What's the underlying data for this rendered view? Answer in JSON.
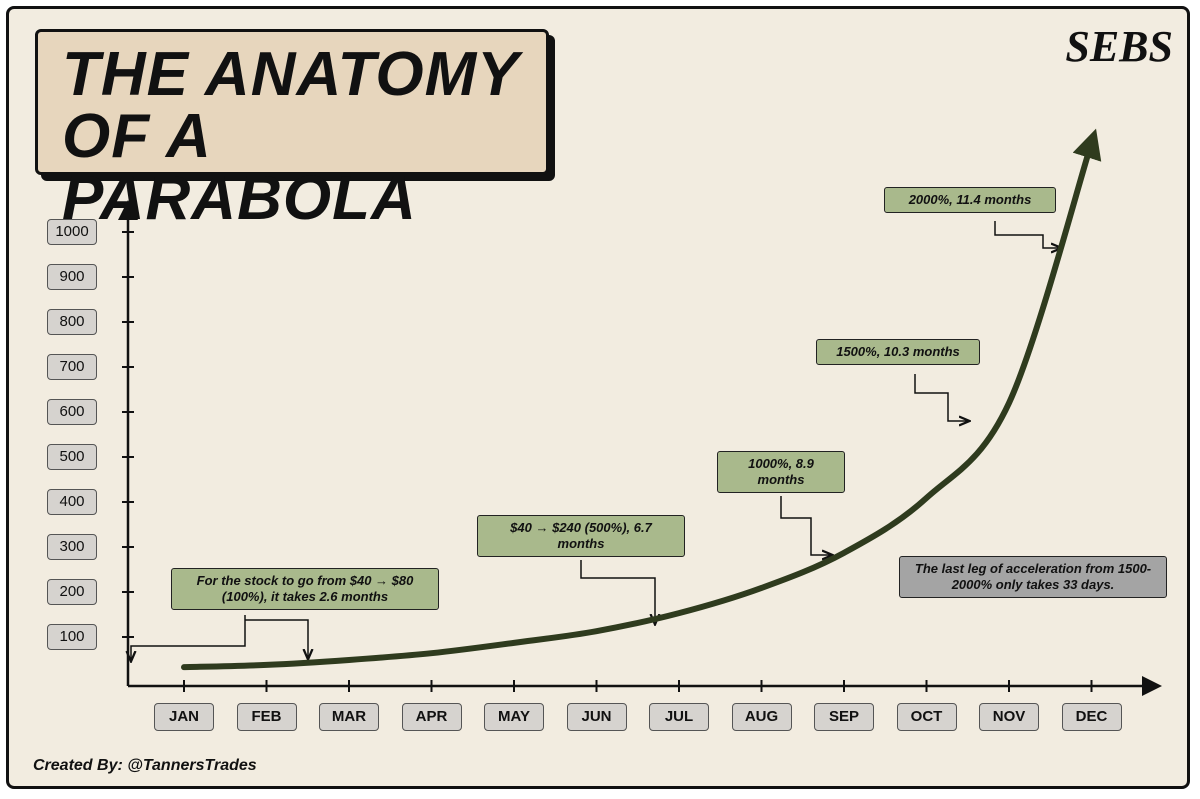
{
  "chart_data": {
    "type": "line",
    "title": [
      "THE ANATOMY",
      "OF A PARABOLA"
    ],
    "brand": "SEBS",
    "credit": "Created By: @TannersTrades",
    "categories": [
      "JAN",
      "FEB",
      "MAR",
      "APR",
      "MAY",
      "JUN",
      "JUL",
      "AUG",
      "SEP",
      "OCT",
      "NOV",
      "DEC"
    ],
    "values": [
      33,
      38,
      49,
      64,
      87,
      113,
      153,
      209,
      287,
      409,
      620,
      1198
    ],
    "color": "#2f3b1e",
    "ylim": [
      0,
      1064
    ],
    "yticks": [
      100,
      200,
      300,
      400,
      500,
      600,
      700,
      800,
      900,
      1000
    ],
    "annotations": [
      "For the stock to go from $40 → $80 (100%), it takes 2.6 months",
      "$40 → $240 (500%), 6.7 months",
      "1000%, 8.9 months",
      "1500%, 10.3 months",
      "2000%, 11.4 months",
      "The last leg of acceleration from 1500-2000% only takes 33 days."
    ]
  }
}
